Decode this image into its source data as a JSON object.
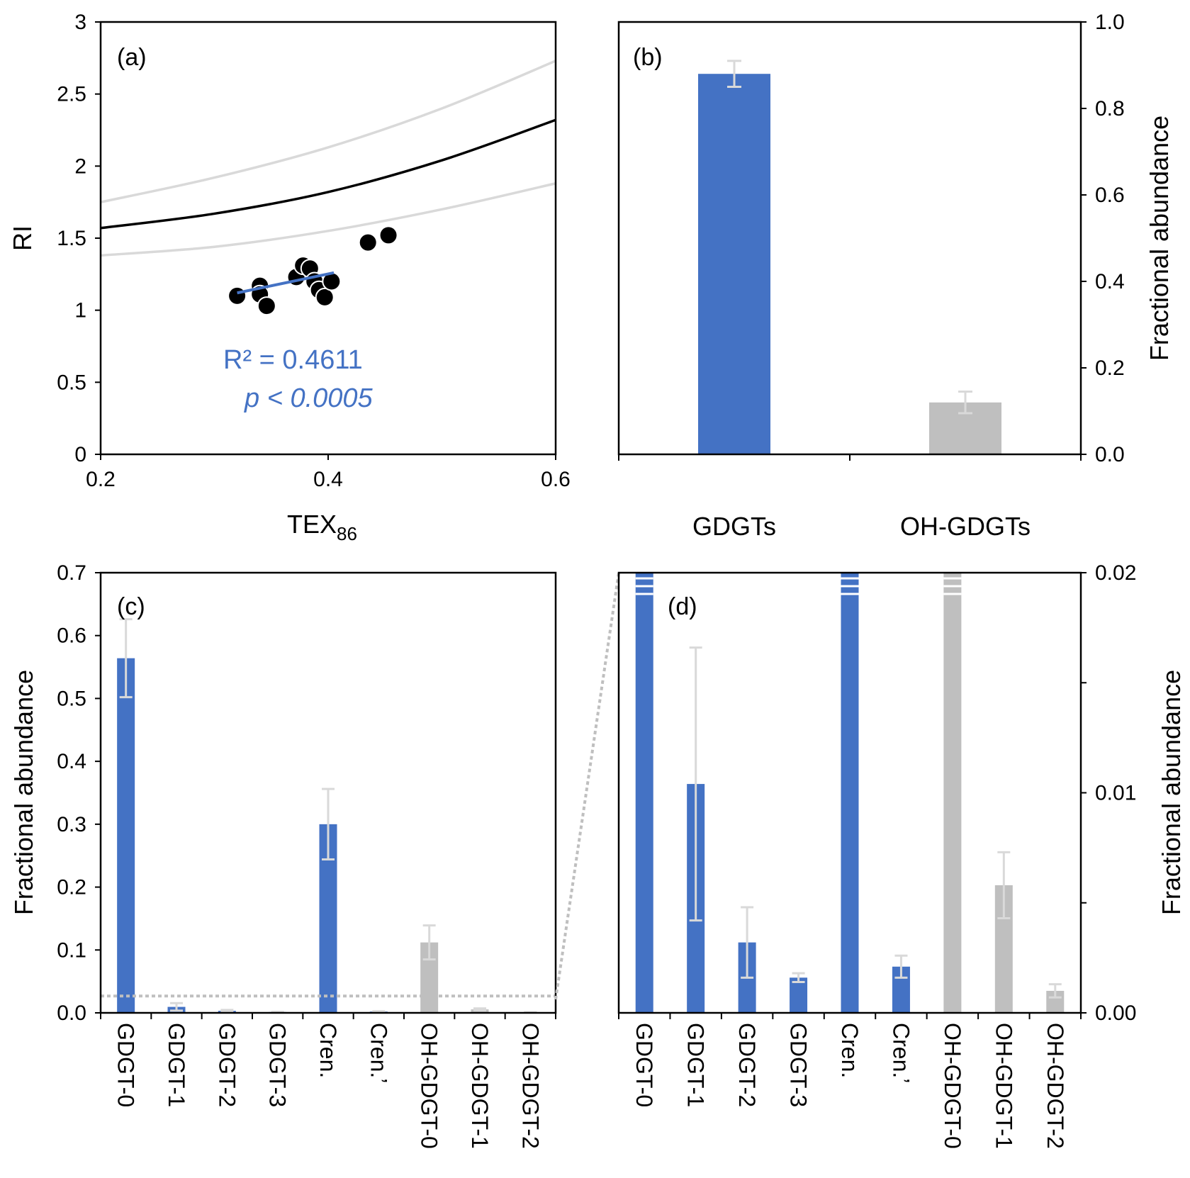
{
  "colors": {
    "blue": "#4472C4",
    "gray": "#BFBFBF",
    "errorbar": "#D9D9D9",
    "curve_main": "#000000",
    "curve_bounds": "#D9D9D9",
    "zoom_line": "#BFBFBF"
  },
  "chart_data": [
    {
      "panel": "(a)",
      "type": "scatter",
      "xlabel_main": "TEX",
      "xlabel_sub": "86",
      "ylabel": "RI",
      "xlim": [
        0.2,
        0.6
      ],
      "ylim": [
        0,
        3
      ],
      "xticks": [
        "0.2",
        "0.4",
        "0.6"
      ],
      "yticks": [
        "0",
        "0.5",
        "1",
        "1.5",
        "2",
        "2.5",
        "3"
      ],
      "grid": false,
      "points": [
        {
          "x": 0.32,
          "y": 1.1
        },
        {
          "x": 0.34,
          "y": 1.17
        },
        {
          "x": 0.34,
          "y": 1.11
        },
        {
          "x": 0.346,
          "y": 1.03
        },
        {
          "x": 0.372,
          "y": 1.23
        },
        {
          "x": 0.378,
          "y": 1.31
        },
        {
          "x": 0.384,
          "y": 1.29
        },
        {
          "x": 0.388,
          "y": 1.2
        },
        {
          "x": 0.392,
          "y": 1.14
        },
        {
          "x": 0.397,
          "y": 1.09
        },
        {
          "x": 0.403,
          "y": 1.2
        },
        {
          "x": 0.435,
          "y": 1.47
        },
        {
          "x": 0.453,
          "y": 1.52
        }
      ],
      "trendline": {
        "x": [
          0.32,
          0.405
        ],
        "y": [
          1.12,
          1.26
        ]
      },
      "curves": {
        "main": {
          "x": [
            0.2,
            0.3,
            0.4,
            0.5,
            0.6
          ],
          "y": [
            1.57,
            1.67,
            1.82,
            2.04,
            2.32
          ]
        },
        "upper": {
          "x": [
            0.2,
            0.3,
            0.4,
            0.5,
            0.6
          ],
          "y": [
            1.75,
            1.92,
            2.13,
            2.4,
            2.73
          ]
        },
        "lower": {
          "x": [
            0.2,
            0.3,
            0.4,
            0.5,
            0.6
          ],
          "y": [
            1.38,
            1.44,
            1.55,
            1.7,
            1.88
          ]
        }
      },
      "annotation_r2": "R² = 0.4611",
      "annotation_p": "p < 0.0005"
    },
    {
      "panel": "(b)",
      "type": "bar",
      "ylabel": "Fractional abundance",
      "ylim": [
        0,
        1.0
      ],
      "yticks": [
        "0.0",
        "0.2",
        "0.4",
        "0.6",
        "0.8",
        "1.0"
      ],
      "categories": [
        "GDGTs",
        "OH-GDGTs"
      ],
      "values": [
        0.88,
        0.12
      ],
      "errors": [
        0.03,
        0.025
      ],
      "bar_colors": [
        "blue",
        "gray"
      ]
    },
    {
      "panel": "(c)",
      "type": "bar",
      "ylabel": "Fractional abundance",
      "ylim": [
        0,
        0.7
      ],
      "yticks": [
        "0.0",
        "0.1",
        "0.2",
        "0.3",
        "0.4",
        "0.5",
        "0.6",
        "0.7"
      ],
      "categories": [
        "GDGT-0",
        "GDGT-1",
        "GDGT-2",
        "GDGT-3",
        "Cren.",
        "Cren.’",
        "OH-GDGT-0",
        "OH-GDGT-1",
        "OH-GDGT-2"
      ],
      "values": [
        0.564,
        0.0095,
        0.0032,
        0.0013,
        0.3,
        0.002,
        0.112,
        0.0055,
        0.0008
      ],
      "errors": [
        0.062,
        0.006,
        0.0015,
        0.0002,
        0.056,
        0.0005,
        0.027,
        0.0015,
        0.0002
      ],
      "bar_colors": [
        "blue",
        "blue",
        "blue",
        "blue",
        "blue",
        "blue",
        "gray",
        "gray",
        "gray"
      ],
      "zoom_threshold": 0.02
    },
    {
      "panel": "(d)",
      "type": "bar",
      "ylabel": "Fractional abundance",
      "ylim": [
        0,
        0.02
      ],
      "yticks": [
        "0.00",
        "0.01",
        "0.02"
      ],
      "categories": [
        "GDGT-0",
        "GDGT-1",
        "GDGT-2",
        "GDGT-3",
        "Cren.",
        "Cren.’",
        "OH-GDGT-0",
        "OH-GDGT-1",
        "OH-GDGT-2"
      ],
      "values": [
        0.02,
        0.0104,
        0.0032,
        0.0016,
        0.02,
        0.0021,
        0.02,
        0.0058,
        0.001
      ],
      "errors": [
        null,
        0.0062,
        0.0016,
        0.0002,
        null,
        0.0005,
        null,
        0.0015,
        0.0003
      ],
      "truncated": [
        true,
        false,
        false,
        false,
        true,
        false,
        true,
        false,
        false
      ],
      "bar_colors": [
        "blue",
        "blue",
        "blue",
        "blue",
        "blue",
        "blue",
        "gray",
        "gray",
        "gray"
      ]
    }
  ]
}
